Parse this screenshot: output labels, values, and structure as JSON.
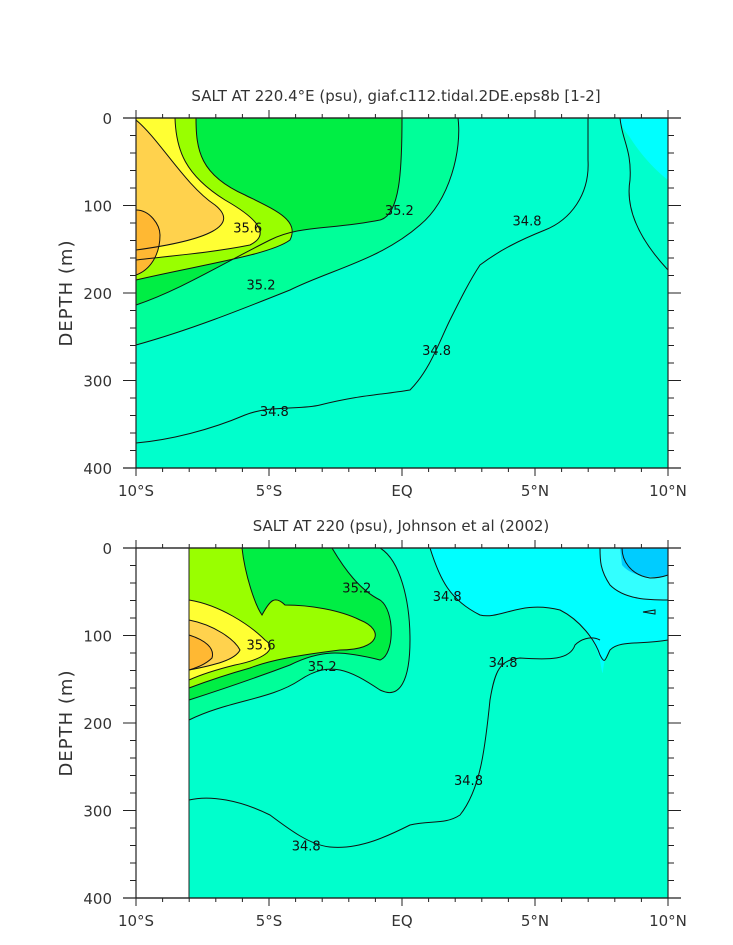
{
  "chart_data": [
    {
      "type": "contour",
      "title": "SALT AT 220.4°E (psu), giaf.c112.tidal.2DE.eps8b [1-2]",
      "ylabel": "DEPTH (m)",
      "ylim": [
        0,
        400
      ],
      "y_inverted": true,
      "yticks": [
        "0",
        "100",
        "200",
        "300",
        "400"
      ],
      "xlim": [
        -10,
        10
      ],
      "xticks": [
        "10°S",
        "5°S",
        "EQ",
        "5°N",
        "10°N"
      ],
      "contour_labels": [
        {
          "text": "35.6",
          "lat": -5.8,
          "depth": 125
        },
        {
          "text": "35.2",
          "lat": -0.1,
          "depth": 105
        },
        {
          "text": "34.8",
          "lat": 4.7,
          "depth": 117
        },
        {
          "text": "35.2",
          "lat": -5.3,
          "depth": 190
        },
        {
          "text": "34.8",
          "lat": 1.3,
          "depth": 265
        },
        {
          "text": "34.8",
          "lat": -4.8,
          "depth": 335
        }
      ]
    },
    {
      "type": "contour",
      "title": "SALT AT 220 (psu), Johnson et al (2002)",
      "ylabel": "DEPTH (m)",
      "ylim": [
        0,
        400
      ],
      "y_inverted": true,
      "yticks": [
        "0",
        "100",
        "200",
        "300",
        "400"
      ],
      "xlim": [
        -10,
        10
      ],
      "xticks": [
        "10°S",
        "5°S",
        "EQ",
        "5°N",
        "10°N"
      ],
      "contour_labels": [
        {
          "text": "35.2",
          "lat": -1.7,
          "depth": 45
        },
        {
          "text": "34.8",
          "lat": 1.7,
          "depth": 55
        },
        {
          "text": "35.6",
          "lat": -5.3,
          "depth": 110
        },
        {
          "text": "35.2",
          "lat": -3.0,
          "depth": 135
        },
        {
          "text": "34.8",
          "lat": 3.8,
          "depth": 130
        },
        {
          "text": "34.8",
          "lat": 2.5,
          "depth": 265
        },
        {
          "text": "34.8",
          "lat": -3.6,
          "depth": 340
        }
      ]
    }
  ],
  "colors": {
    "lt_34_4": "#00ccff",
    "b_34_4_34_6": "#33ffff",
    "b_34_6_34_8": "#00ffff",
    "b_34_8_35_0": "#00ffcc",
    "b_35_0_35_2": "#00ff99",
    "b_35_2_35_4": "#00ee44",
    "b_35_4_35_6": "#99ff00",
    "b_35_6_35_8": "#ffff33",
    "b_35_8_36_0": "#ffd24d",
    "b_gt_36_0": "#ffb833"
  }
}
